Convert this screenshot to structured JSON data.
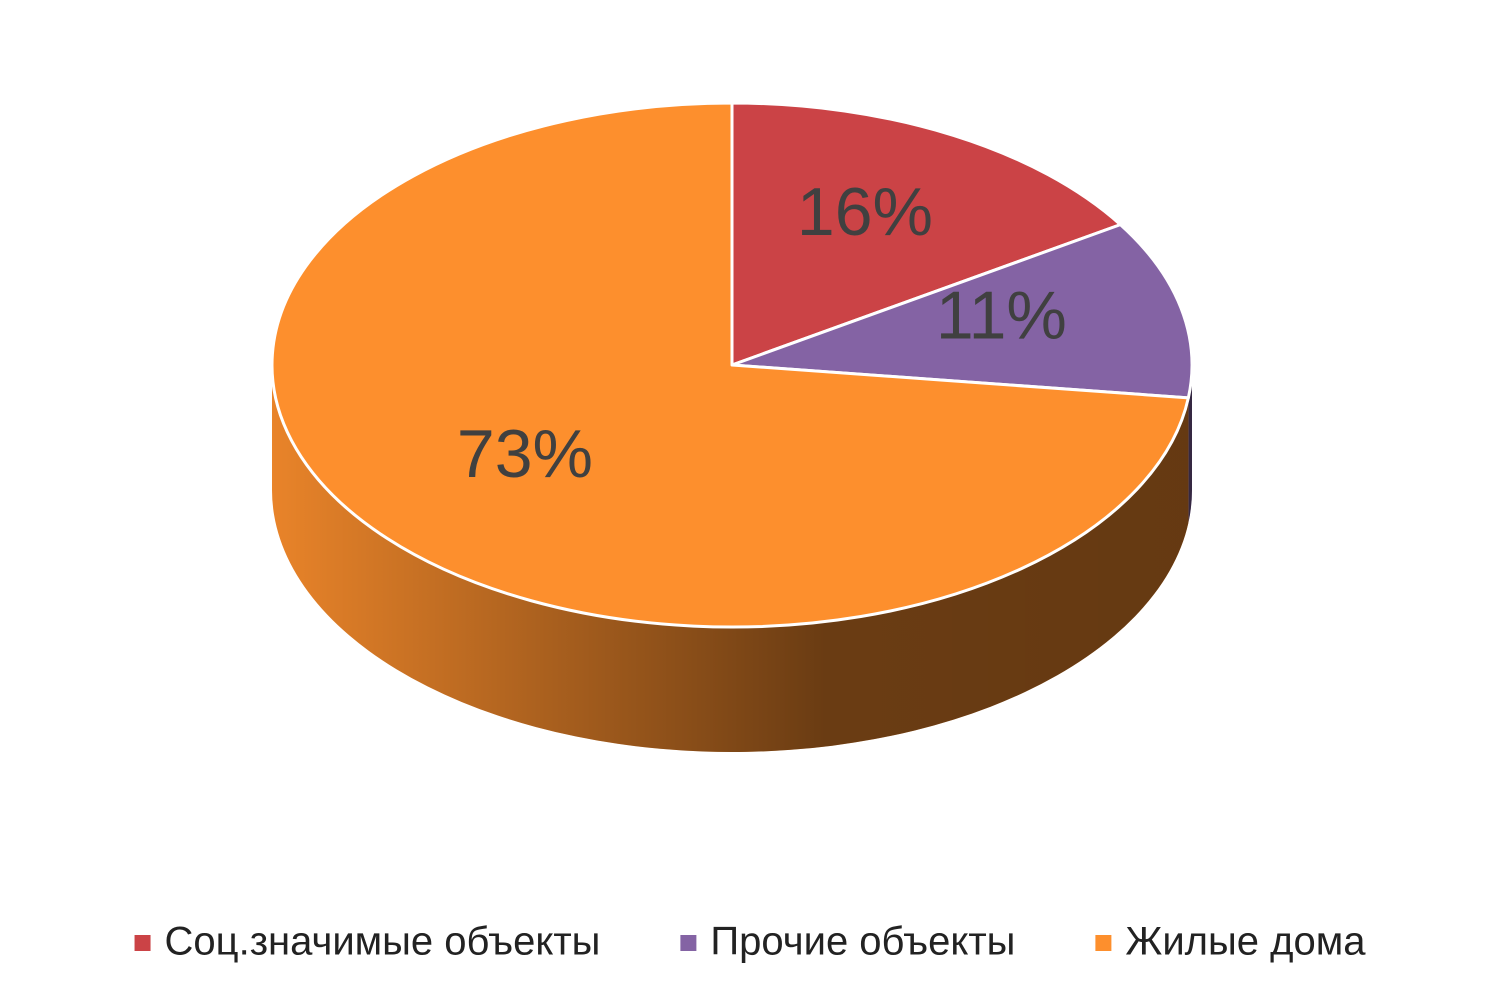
{
  "chart_data": {
    "type": "pie",
    "categories": [
      "Соц.значимые объекты",
      "Прочие объекты",
      "Жилые дома"
    ],
    "values": [
      16,
      11,
      73
    ],
    "value_labels": [
      "16%",
      "11%",
      "73%"
    ],
    "colors": [
      "#cb4346",
      "#8463a4",
      "#fd8f2d"
    ],
    "legend": "bottom"
  }
}
